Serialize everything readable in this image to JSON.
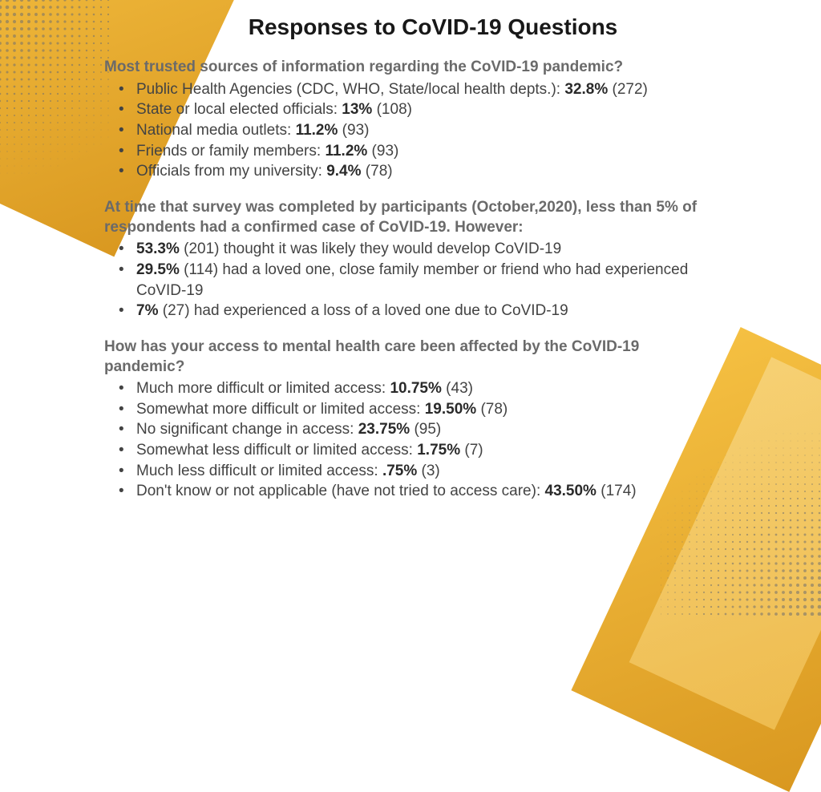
{
  "colors": {
    "gold_a": "#f5c042",
    "gold_b": "#d99820",
    "gold_light": "#f8d98a",
    "dot": "#6f6f6f",
    "title": "#181818",
    "question": "#6a6a6a",
    "body": "#434343",
    "bold": "#2a2a2a"
  },
  "title": "Responses to CoVID-19 Questions",
  "sections": [
    {
      "question": "Most trusted sources of information regarding the CoVID-19 pandemic?",
      "items": [
        {
          "text_a": "Public Health Agencies (CDC, WHO, State/local health depts.): ",
          "pct": "32.8%",
          "tail": " (272)"
        },
        {
          "text_a": "State or local elected officials: ",
          "pct": "13%",
          "tail": " (108)"
        },
        {
          "text_a": "National media outlets: ",
          "pct": "11.2%",
          "tail": " (93)"
        },
        {
          "text_a": "Friends or family members: ",
          "pct": "11.2%",
          "tail": " (93)"
        },
        {
          "text_a": "Officials from my university: ",
          "pct": "9.4%",
          "tail": " (78)"
        }
      ]
    },
    {
      "question": "At time that survey was completed by participants (October,2020), less than 5% of respondents had a confirmed case of CoVID-19. However:",
      "items": [
        {
          "pct": "53.3%",
          "tail": " (201) thought it was likely they would develop CoVID-19"
        },
        {
          "pct": "29.5%",
          "tail": " (114) had a loved one, close family member or friend who had experienced CoVID-19"
        },
        {
          "pct": "7%",
          "tail": " (27) had experienced a loss of a loved one due to CoVID-19"
        }
      ]
    },
    {
      "question": "How has your access to mental health care been affected by the CoVID-19 pandemic?",
      "items": [
        {
          "text_a": "Much more difficult or limited access: ",
          "pct": "10.75%",
          "tail": " (43)"
        },
        {
          "text_a": "Somewhat more difficult or limited access: ",
          "pct": "19.50%",
          "tail": " (78)"
        },
        {
          "text_a": "No significant change in access: ",
          "pct": "23.75%",
          "tail": " (95)"
        },
        {
          "text_a": "Somewhat less difficult or limited access: ",
          "pct": "1.75%",
          "tail": " (7)"
        },
        {
          "text_a": "Much less difficult or limited access: ",
          "pct": ".75%",
          "tail": " (3)"
        },
        {
          "text_a": "Don't know or not applicable (have not tried to access care): ",
          "pct": "43.50%",
          "tail": " (174)"
        }
      ]
    }
  ]
}
